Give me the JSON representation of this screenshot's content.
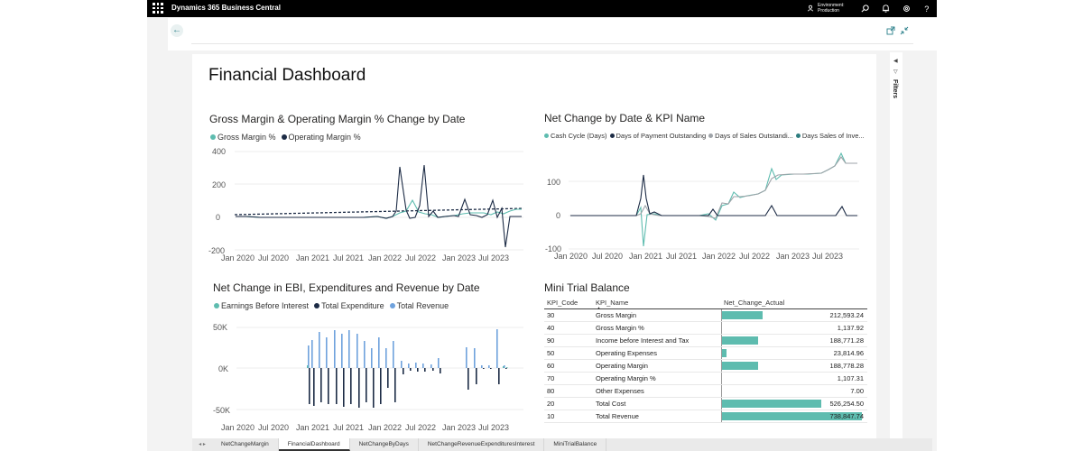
{
  "topbar": {
    "app_title": "Dynamics 365 Business Central",
    "environment_line1": "Environment:",
    "environment_line2": "Production"
  },
  "page": {
    "title": "Financial Dashboard",
    "filters_label": "Filters"
  },
  "colors": {
    "teal": "#5ebcaf",
    "navy": "#1c2b45",
    "blue": "#6fa2dd",
    "gray": "#9ea3a8",
    "dark_teal": "#2d7d7f"
  },
  "chart1": {
    "title": "Gross Margin & Operating Margin % Change by Date",
    "legend": [
      "Gross Margin %",
      "Operating Margin %"
    ],
    "yticks": [
      "400",
      "200",
      "0",
      "-200"
    ],
    "xticks": [
      "Jan 2020",
      "Jul 2020",
      "Jan 2021",
      "Jul 2021",
      "Jan 2022",
      "Jul 2022",
      "Jan 2023",
      "Jul 2023"
    ]
  },
  "chart2": {
    "title": "Net Change by Date & KPI Name",
    "legend": [
      "Cash Cycle (Days)",
      "Days of Payment Outstanding",
      "Days of Sales Outstandi...",
      "Days Sales of Inve..."
    ],
    "yticks": [
      "100",
      "0",
      "-100"
    ],
    "xticks": [
      "Jan 2020",
      "Jul 2020",
      "Jan 2021",
      "Jul 2021",
      "Jan 2022",
      "Jul 2022",
      "Jan 2023",
      "Jul 2023"
    ]
  },
  "chart3": {
    "title": "Net Change in EBI, Expenditures and Revenue by Date",
    "legend": [
      "Earnings Before Interest",
      "Total Expenditure",
      "Total Revenue"
    ],
    "yticks": [
      "50K",
      "0K",
      "-50K"
    ],
    "xticks": [
      "Jan 2020",
      "Jul 2020",
      "Jan 2021",
      "Jul 2021",
      "Jan 2022",
      "Jul 2022",
      "Jan 2023",
      "Jul 2023"
    ]
  },
  "table": {
    "title": "Mini Trial Balance",
    "headers": [
      "KPI_Code",
      "KPI_Name",
      "Net_Change_Actual"
    ],
    "rows": [
      {
        "code": "30",
        "name": "Gross Margin",
        "value": "212,593.24",
        "frac": 0.288
      },
      {
        "code": "40",
        "name": "Gross Margin %",
        "value": "1,137.92",
        "frac": 0.0
      },
      {
        "code": "90",
        "name": "Income before Interest and Tax",
        "value": "188,771.28",
        "frac": 0.255
      },
      {
        "code": "50",
        "name": "Operating Expenses",
        "value": "23,814.96",
        "frac": 0.032
      },
      {
        "code": "60",
        "name": "Operating Margin",
        "value": "188,778.28",
        "frac": 0.255
      },
      {
        "code": "70",
        "name": "Operating Margin %",
        "value": "1,107.31",
        "frac": 0.0
      },
      {
        "code": "80",
        "name": "Other Expenses",
        "value": "7.00",
        "frac": 0.0
      },
      {
        "code": "20",
        "name": "Total Cost",
        "value": "526,254.50",
        "frac": 0.712
      },
      {
        "code": "10",
        "name": "Total Revenue",
        "value": "738,847.74",
        "frac": 1.0
      }
    ]
  },
  "tabs": [
    "NetChangeMargin",
    "FinancialDashboard",
    "NetChangeByDays",
    "NetChangeRevenueExpendituresInterest",
    "MiniTrialBalance"
  ],
  "active_tab": 1
}
